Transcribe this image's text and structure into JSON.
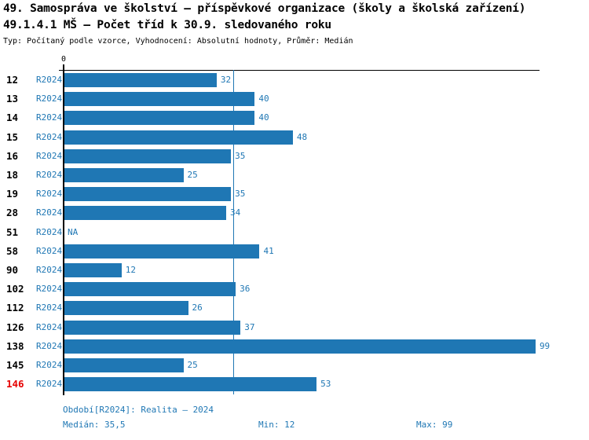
{
  "header": {
    "title_line1": "49. Samospráva ve školství – příspěvkové organizace (školy a školská zařízení)",
    "title_line2": "49.1.4.1 MŠ – Počet tříd k 30.9. sledovaného roku",
    "subtitle": "Typ: Počítaný podle vzorce, Vyhodnocení: Absolutní hodnoty, Průměr: Medián"
  },
  "theme": {
    "bar_color": "#1f77b4",
    "blue_text_color": "#1f77b4",
    "highlight_red_color": "#e60000",
    "axis_color": "#000000"
  },
  "chart_data": {
    "type": "bar",
    "orientation": "horizontal",
    "x_axis": {
      "zero_label": "0",
      "min": 0,
      "max_hint": 100
    },
    "median_value": 35.5,
    "na_display": "NA",
    "rows": [
      {
        "category": "12",
        "period": "R2024",
        "value": 32,
        "highlight": false
      },
      {
        "category": "13",
        "period": "R2024",
        "value": 40,
        "highlight": false
      },
      {
        "category": "14",
        "period": "R2024",
        "value": 40,
        "highlight": false
      },
      {
        "category": "15",
        "period": "R2024",
        "value": 48,
        "highlight": false
      },
      {
        "category": "16",
        "period": "R2024",
        "value": 35,
        "highlight": false
      },
      {
        "category": "18",
        "period": "R2024",
        "value": 25,
        "highlight": false
      },
      {
        "category": "19",
        "period": "R2024",
        "value": 35,
        "highlight": false
      },
      {
        "category": "28",
        "period": "R2024",
        "value": 34,
        "highlight": false
      },
      {
        "category": "51",
        "period": "R2024",
        "value": null,
        "highlight": false
      },
      {
        "category": "58",
        "period": "R2024",
        "value": 41,
        "highlight": false
      },
      {
        "category": "90",
        "period": "R2024",
        "value": 12,
        "highlight": false
      },
      {
        "category": "102",
        "period": "R2024",
        "value": 36,
        "highlight": false
      },
      {
        "category": "112",
        "period": "R2024",
        "value": 26,
        "highlight": false
      },
      {
        "category": "126",
        "period": "R2024",
        "value": 37,
        "highlight": false
      },
      {
        "category": "138",
        "period": "R2024",
        "value": 99,
        "highlight": false
      },
      {
        "category": "145",
        "period": "R2024",
        "value": 25,
        "highlight": false
      },
      {
        "category": "146",
        "period": "R2024",
        "value": 53,
        "highlight": true
      }
    ]
  },
  "footer": {
    "period_label": "Období[R2024]: Realita – 2024",
    "median_label": "Medián: 35,5",
    "min_label": "Min: 12",
    "max_label": "Max: 99"
  }
}
